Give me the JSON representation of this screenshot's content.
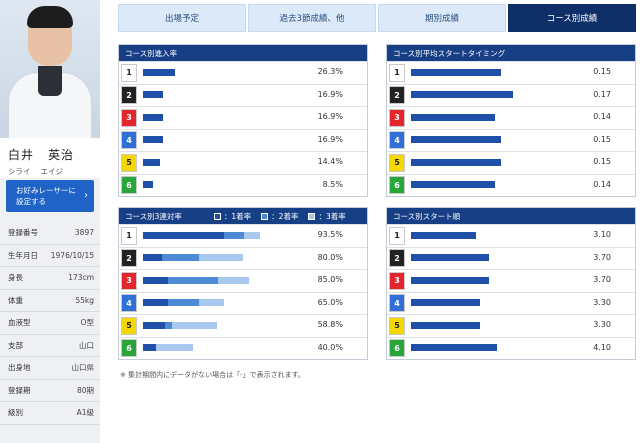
{
  "profile": {
    "name_family": "白井",
    "name_given": "英治",
    "kana_family": "シライ",
    "kana_given": "エイジ",
    "favorite_button": "お好みレーサーに設定する",
    "info": [
      {
        "label": "登録番号",
        "value": "3897"
      },
      {
        "label": "生年月日",
        "value": "1976/10/15"
      },
      {
        "label": "身長",
        "value": "173cm"
      },
      {
        "label": "体重",
        "value": "55kg"
      },
      {
        "label": "血液型",
        "value": "O型"
      },
      {
        "label": "支部",
        "value": "山口"
      },
      {
        "label": "出身地",
        "value": "山口県"
      },
      {
        "label": "登録期",
        "value": "80期"
      },
      {
        "label": "級別",
        "value": "A1級"
      }
    ]
  },
  "tabs": [
    "出場予定",
    "過去3節成績、他",
    "期別成績",
    "コース別成績"
  ],
  "active_tab": 3,
  "lane_colors": {
    "1": {
      "bg": "#ffffff",
      "fg": "#222222"
    },
    "2": {
      "bg": "#222222",
      "fg": "#ffffff"
    },
    "3": {
      "bg": "#e3262d",
      "fg": "#ffffff"
    },
    "4": {
      "bg": "#2f6fd6",
      "fg": "#ffffff"
    },
    "5": {
      "bg": "#f5d800",
      "fg": "#222222"
    },
    "6": {
      "bg": "#2aa53a",
      "fg": "#ffffff"
    }
  },
  "panels": {
    "entry_rate": {
      "title": "コース別進入率",
      "rows": [
        {
          "lane": "1",
          "value": "26.3%",
          "pct": 26.3
        },
        {
          "lane": "2",
          "value": "16.9%",
          "pct": 16.9
        },
        {
          "lane": "3",
          "value": "16.9%",
          "pct": 16.9
        },
        {
          "lane": "4",
          "value": "16.9%",
          "pct": 16.9
        },
        {
          "lane": "5",
          "value": "14.4%",
          "pct": 14.4
        },
        {
          "lane": "6",
          "value": "8.5%",
          "pct": 8.5
        }
      ]
    },
    "avg_st": {
      "title": "コース別平均スタートタイミング",
      "rows": [
        {
          "lane": "1",
          "value": "0.15",
          "num": 0.15
        },
        {
          "lane": "2",
          "value": "0.17",
          "num": 0.17
        },
        {
          "lane": "3",
          "value": "0.14",
          "num": 0.14
        },
        {
          "lane": "4",
          "value": "0.15",
          "num": 0.15
        },
        {
          "lane": "5",
          "value": "0.15",
          "num": 0.15
        },
        {
          "lane": "6",
          "value": "0.14",
          "num": 0.14
        }
      ]
    },
    "top3_rate": {
      "title": "コース別3連対率",
      "legend": [
        "：1着率",
        "：2着率",
        "：3着率"
      ],
      "legend_colors": [
        "#1f4fa8",
        "#4d8ad6",
        "#a9c8ee"
      ],
      "rows": [
        {
          "lane": "1",
          "value": "93.5%",
          "first": 64.5,
          "second": 16.1,
          "third": 12.9
        },
        {
          "lane": "2",
          "value": "80.0%",
          "first": 15.0,
          "second": 30.0,
          "third": 35.0
        },
        {
          "lane": "3",
          "value": "85.0%",
          "first": 20.0,
          "second": 40.0,
          "third": 25.0
        },
        {
          "lane": "4",
          "value": "65.0%",
          "first": 20.0,
          "second": 25.0,
          "third": 20.0
        },
        {
          "lane": "5",
          "value": "58.8%",
          "first": 17.6,
          "second": 5.9,
          "third": 35.3
        },
        {
          "lane": "6",
          "value": "40.0%",
          "first": 10.0,
          "second": 0.0,
          "third": 30.0
        }
      ]
    },
    "start_order": {
      "title": "コース別スタート順",
      "rows": [
        {
          "lane": "1",
          "value": "3.10",
          "num": 3.1
        },
        {
          "lane": "2",
          "value": "3.70",
          "num": 3.7
        },
        {
          "lane": "3",
          "value": "3.70",
          "num": 3.7
        },
        {
          "lane": "4",
          "value": "3.30",
          "num": 3.3
        },
        {
          "lane": "5",
          "value": "3.30",
          "num": 3.3
        },
        {
          "lane": "6",
          "value": "4.10",
          "num": 4.1
        }
      ]
    }
  },
  "footnote": "※ 集計期間内にデータがない場合は「-」で表示されます。"
}
